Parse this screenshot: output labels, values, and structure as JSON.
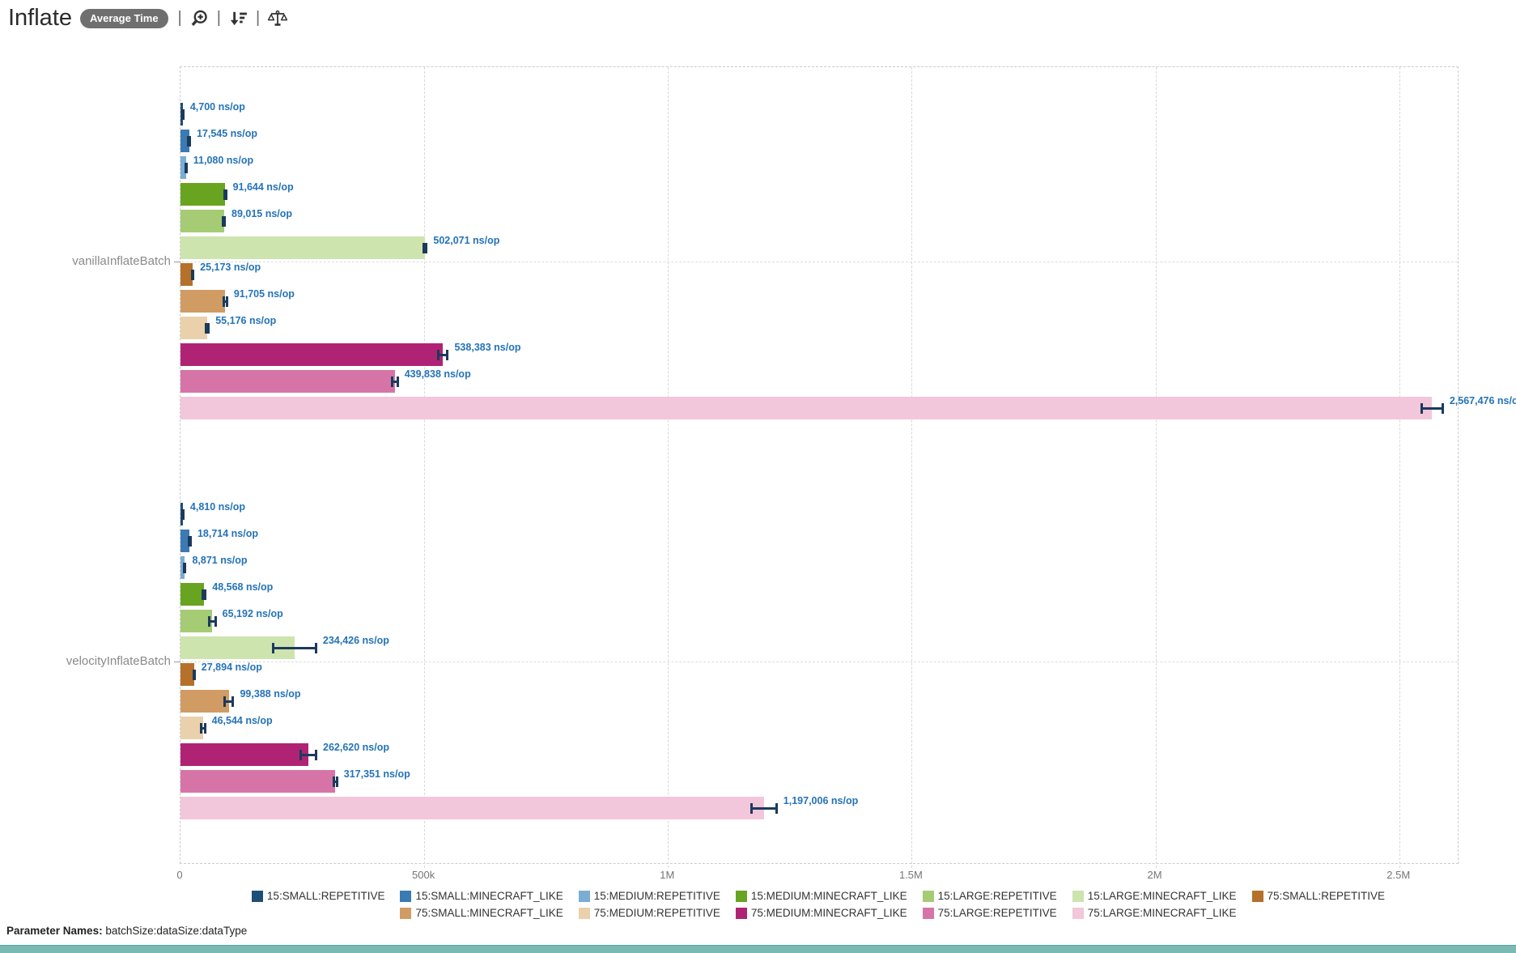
{
  "header": {
    "title": "Inflate",
    "badge": "Average Time",
    "separator": "|"
  },
  "chart_data": {
    "type": "bar",
    "orientation": "horizontal",
    "title": "Inflate",
    "metric": "Average Time",
    "unit": "ns/op",
    "grid": "dashed",
    "legend_position": "bottom",
    "legend_row_break": 7,
    "axis_max": 2620000,
    "x_ticks": [
      {
        "label": "0",
        "value": 0
      },
      {
        "label": "500k",
        "value": 500000
      },
      {
        "label": "1M",
        "value": 1000000
      },
      {
        "label": "1.5M",
        "value": 1500000
      },
      {
        "label": "2M",
        "value": 2000000
      },
      {
        "label": "2.5M",
        "value": 2500000
      }
    ],
    "categories": [
      "vanillaInflateBatch",
      "velocityInflateBatch"
    ],
    "series": [
      {
        "name": "15:SMALL:REPETITIVE",
        "color": "#1d4f76",
        "values": [
          4700,
          4810
        ],
        "errors": [
          2000,
          2500
        ]
      },
      {
        "name": "15:SMALL:MINECRAFT_LIKE",
        "color": "#3c7ab3",
        "values": [
          17545,
          18714
        ],
        "errors": [
          4000,
          4500
        ]
      },
      {
        "name": "15:MEDIUM:REPETITIVE",
        "color": "#7badd3",
        "values": [
          11080,
          8871
        ],
        "errors": [
          3500,
          3500
        ]
      },
      {
        "name": "15:MEDIUM:MINECRAFT_LIKE",
        "color": "#68a41f",
        "values": [
          91644,
          48568
        ],
        "errors": [
          4000,
          5000
        ]
      },
      {
        "name": "15:LARGE:REPETITIVE",
        "color": "#a5cc74",
        "values": [
          89015,
          65192
        ],
        "errors": [
          4000,
          9000
        ]
      },
      {
        "name": "15:LARGE:MINECRAFT_LIKE",
        "color": "#cde4af",
        "values": [
          502071,
          234426
        ],
        "errors": [
          5000,
          46000
        ]
      },
      {
        "name": "75:SMALL:REPETITIVE",
        "color": "#b5702a",
        "values": [
          25173,
          27894
        ],
        "errors": [
          3000,
          3000
        ]
      },
      {
        "name": "75:SMALL:MINECRAFT_LIKE",
        "color": "#d09c64",
        "values": [
          91705,
          99388
        ],
        "errors": [
          6000,
          11000
        ]
      },
      {
        "name": "75:MEDIUM:REPETITIVE",
        "color": "#ead0ab",
        "values": [
          55176,
          46544
        ],
        "errors": [
          5000,
          6000
        ]
      },
      {
        "name": "75:MEDIUM:MINECRAFT_LIKE",
        "color": "#b02374",
        "values": [
          538383,
          262620
        ],
        "errors": [
          12000,
          18000
        ]
      },
      {
        "name": "75:LARGE:REPETITIVE",
        "color": "#d674a8",
        "values": [
          439838,
          317351
        ],
        "errors": [
          8000,
          6000
        ]
      },
      {
        "name": "75:LARGE:MINECRAFT_LIKE",
        "color": "#f2c6db",
        "values": [
          2567476,
          1197006
        ],
        "errors": [
          24000,
          28000
        ]
      }
    ]
  },
  "footer": {
    "label": "Parameter Names:",
    "value": "batchSize:dataSize:dataType"
  },
  "colors": {
    "value_label": "#2573b8",
    "error_bar": "#1b3a5c",
    "badge_bg": "#6f6f6f",
    "category_label": "#8a8a8a",
    "tick_label": "#757575",
    "legend_text": "#333333",
    "accent_teal": "#7ab9b4",
    "grid_line": "#d8d8d8"
  }
}
